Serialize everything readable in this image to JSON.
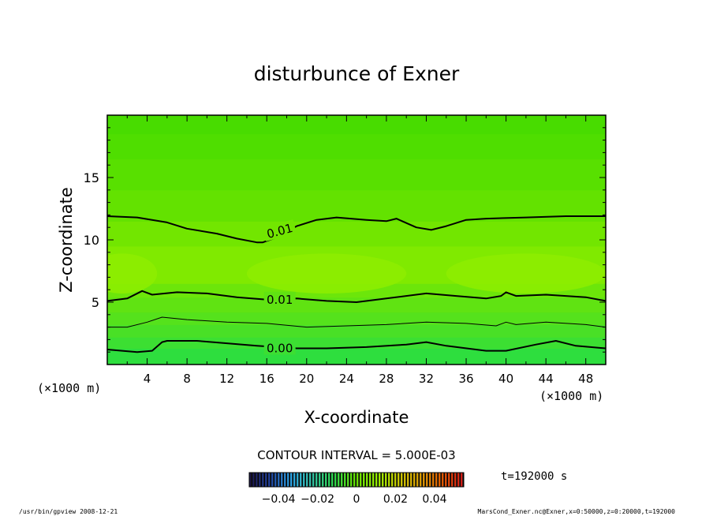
{
  "chart_data": {
    "type": "heatmap",
    "title": "disturbunce of Exner",
    "xlabel": "X-coordinate",
    "ylabel": "Z-coordinate",
    "x_unit_left": "(×1000 m)",
    "x_unit_right": "(×1000 m)",
    "xlim": [
      0,
      50
    ],
    "ylim": [
      0,
      20
    ],
    "x_ticks": [
      4,
      8,
      12,
      16,
      20,
      24,
      28,
      32,
      36,
      40,
      44,
      48
    ],
    "y_ticks": [
      5,
      10,
      15
    ],
    "colormap": [
      "#1a0f3d",
      "#1f3f99",
      "#2aa0e0",
      "#30c0a0",
      "#2ed64a",
      "#66e000",
      "#98ee00",
      "#c8c800",
      "#d99c00",
      "#e05a00",
      "#d01818"
    ],
    "background_bands": [
      {
        "z0": 0,
        "z1": 1.3,
        "color": "#2ede3e"
      },
      {
        "z0": 1.3,
        "z1": 2.2,
        "color": "#3cdf32"
      },
      {
        "z0": 2.2,
        "z1": 3.2,
        "color": "#49e026"
      },
      {
        "z0": 3.2,
        "z1": 4.2,
        "color": "#55e21c"
      },
      {
        "z0": 4.2,
        "z1": 5.4,
        "color": "#60e312"
      },
      {
        "z0": 5.4,
        "z1": 6.5,
        "color": "#6ce60a"
      },
      {
        "z0": 6.5,
        "z1": 9.5,
        "color": "#80ea00"
      },
      {
        "z0": 9.5,
        "z1": 11.5,
        "color": "#72e600"
      },
      {
        "z0": 11.5,
        "z1": 14,
        "color": "#63e200"
      },
      {
        "z0": 14,
        "z1": 16.5,
        "color": "#58e000"
      },
      {
        "z0": 16.5,
        "z1": 18.5,
        "color": "#4fde00"
      },
      {
        "z0": 18.5,
        "z1": 20,
        "color": "#48dc00"
      }
    ],
    "highlight_blobs": [
      {
        "x": 1.5,
        "z": 7.3,
        "rx": 3.5,
        "rz": 1.6,
        "color": "#8eed00"
      },
      {
        "x": 22,
        "z": 7.3,
        "rx": 8,
        "rz": 1.6,
        "color": "#8eed00"
      },
      {
        "x": 42,
        "z": 7.3,
        "rx": 8,
        "rz": 1.6,
        "color": "#8eed00"
      }
    ],
    "contours": [
      {
        "level": "0.01",
        "width": 2,
        "points": [
          [
            0,
            11.9
          ],
          [
            3,
            11.8
          ],
          [
            6,
            11.4
          ],
          [
            8,
            10.9
          ],
          [
            11,
            10.5
          ],
          [
            13,
            10.1
          ],
          [
            15,
            9.8
          ],
          [
            15.6,
            9.8
          ],
          [
            17,
            10.2
          ],
          [
            19,
            11.1
          ],
          [
            21,
            11.6
          ],
          [
            23,
            11.8
          ],
          [
            26,
            11.6
          ],
          [
            28,
            11.5
          ],
          [
            29,
            11.7
          ],
          [
            31,
            11.0
          ],
          [
            32.5,
            10.8
          ],
          [
            34,
            11.1
          ],
          [
            36,
            11.6
          ],
          [
            38,
            11.7
          ],
          [
            42,
            11.8
          ],
          [
            46,
            11.9
          ],
          [
            50,
            11.9
          ]
        ],
        "label": "0.01",
        "label_x": 17.3,
        "label_z": 10.7,
        "label_angle": -15
      },
      {
        "level": "0.01",
        "width": 2,
        "points": [
          [
            0,
            5.1
          ],
          [
            2,
            5.3
          ],
          [
            3.5,
            5.9
          ],
          [
            4.5,
            5.6
          ],
          [
            7,
            5.8
          ],
          [
            10,
            5.7
          ],
          [
            13,
            5.4
          ],
          [
            16,
            5.2
          ],
          [
            19,
            5.3
          ],
          [
            22,
            5.1
          ],
          [
            25,
            5.0
          ],
          [
            28,
            5.3
          ],
          [
            32,
            5.7
          ],
          [
            35,
            5.5
          ],
          [
            38,
            5.3
          ],
          [
            39.5,
            5.5
          ],
          [
            40,
            5.8
          ],
          [
            41,
            5.5
          ],
          [
            44,
            5.6
          ],
          [
            48,
            5.4
          ],
          [
            50,
            5.1
          ]
        ],
        "label": "0.01",
        "label_x": 17.3,
        "label_z": 5.2,
        "label_angle": 0
      },
      {
        "level": "",
        "width": 1,
        "points": [
          [
            0,
            3.0
          ],
          [
            2,
            3.0
          ],
          [
            4,
            3.4
          ],
          [
            5.5,
            3.8
          ],
          [
            8,
            3.6
          ],
          [
            12,
            3.4
          ],
          [
            16,
            3.3
          ],
          [
            20,
            3.0
          ],
          [
            24,
            3.1
          ],
          [
            28,
            3.2
          ],
          [
            32,
            3.4
          ],
          [
            36,
            3.3
          ],
          [
            39,
            3.1
          ],
          [
            40,
            3.4
          ],
          [
            41,
            3.2
          ],
          [
            44,
            3.4
          ],
          [
            48,
            3.2
          ],
          [
            50,
            3.0
          ]
        ],
        "label": "",
        "label_x": 0,
        "label_z": 0,
        "label_angle": 0
      },
      {
        "level": "0.00",
        "width": 2,
        "points": [
          [
            0,
            1.2
          ],
          [
            3,
            1.0
          ],
          [
            4.5,
            1.1
          ],
          [
            5.5,
            1.8
          ],
          [
            6,
            1.9
          ],
          [
            9,
            1.9
          ],
          [
            12,
            1.7
          ],
          [
            15,
            1.5
          ],
          [
            19,
            1.3
          ],
          [
            22,
            1.3
          ],
          [
            26,
            1.4
          ],
          [
            30,
            1.6
          ],
          [
            32,
            1.8
          ],
          [
            34,
            1.5
          ],
          [
            38,
            1.1
          ],
          [
            40,
            1.1
          ],
          [
            43,
            1.6
          ],
          [
            45,
            1.9
          ],
          [
            47,
            1.5
          ],
          [
            50,
            1.3
          ]
        ],
        "label": "0.00",
        "label_x": 17.3,
        "label_z": 1.3,
        "label_angle": 0
      }
    ],
    "contour_interval_text": "CONTOUR INTERVAL = 5.000E-03",
    "time_text": "t=192000 s",
    "colorbar_ticks": [
      "−0.04",
      "−0.02",
      "0",
      "0.02",
      "0.04"
    ]
  },
  "footer": {
    "left": "/usr/bin/gpview   2008-12-21",
    "right": "MarsCond_Exner.nc@Exner,x=0:50000,z=0:20000,t=192000"
  }
}
